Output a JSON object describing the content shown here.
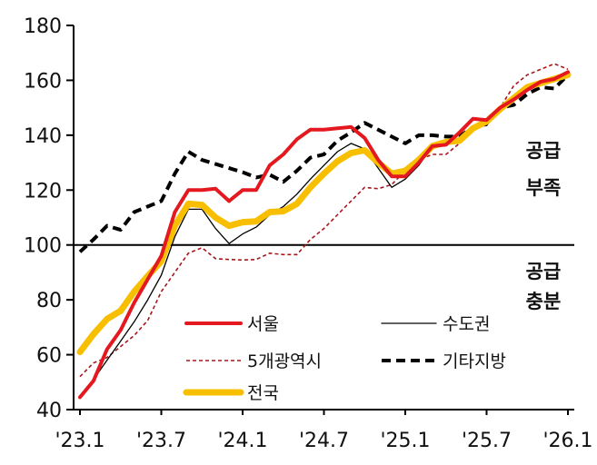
{
  "chart_data": {
    "type": "line",
    "title": "",
    "xlabel": "",
    "ylabel": "",
    "ylim": [
      40,
      180
    ],
    "yticks": [
      40,
      60,
      80,
      100,
      120,
      140,
      160,
      180
    ],
    "x_start": "2023-01",
    "x_end": "2026-01",
    "x_frequency": "monthly",
    "xtick_labels": [
      "'23.1",
      "'23.7",
      "'24.1",
      "'24.7",
      "'25.1",
      "'25.7",
      "'26.1"
    ],
    "reference_line": 100,
    "grid": false,
    "legend_placement": "bottom-center",
    "annotations": {
      "above": [
        "공급",
        "부족"
      ],
      "below": [
        "공급",
        "충분"
      ]
    },
    "series": [
      {
        "name": "서울",
        "color": "#e3191f",
        "style": "solid-thick",
        "values": [
          44.5,
          50.5,
          62,
          69,
          79,
          87.5,
          96,
          112,
          120,
          120,
          120.5,
          116,
          120,
          120,
          129,
          133,
          138.5,
          142,
          142,
          142.5,
          143,
          139,
          131,
          125,
          125,
          130,
          136,
          136.5,
          141,
          146,
          145.5,
          150,
          153,
          156.5,
          159.5,
          160.5,
          163
        ]
      },
      {
        "name": "수도권",
        "color": "#000000",
        "style": "solid-thin",
        "values": [
          44.5,
          51,
          58,
          65,
          72,
          80,
          89,
          103,
          113,
          113,
          106,
          100.5,
          104,
          106.5,
          111,
          114,
          118.5,
          124,
          129,
          134,
          137,
          135,
          128,
          121,
          124,
          129,
          136,
          137,
          138,
          143,
          143.5,
          150,
          153,
          157,
          158.5,
          160,
          162
        ]
      },
      {
        "name": "5개광역시",
        "color": "#a8161c",
        "style": "dashed-thin",
        "values": [
          52,
          57,
          59,
          63,
          67,
          72.5,
          83,
          90,
          97,
          99,
          95,
          94.7,
          94.5,
          94.7,
          97,
          96.5,
          96.5,
          102,
          106,
          111,
          116,
          121,
          120.5,
          122,
          127,
          131,
          133,
          133,
          137,
          142,
          144,
          150,
          158,
          162,
          164,
          166,
          164
        ]
      },
      {
        "name": "기타지방",
        "color": "#000000",
        "style": "dashed-thick",
        "values": [
          97.5,
          102,
          107,
          105.5,
          112,
          114,
          116,
          126,
          134,
          131,
          129.5,
          128,
          126.5,
          124.6,
          125.6,
          123,
          127,
          131.8,
          133,
          138,
          141,
          144.5,
          142,
          139.5,
          137,
          140,
          140,
          139.5,
          139.5,
          143,
          145,
          150,
          151,
          155,
          157.5,
          157,
          162
        ]
      },
      {
        "name": "전국",
        "color": "#f8bf00",
        "style": "solid-thickest",
        "values": [
          61,
          67.5,
          73,
          76,
          83,
          88.7,
          94,
          107,
          115,
          114.6,
          110,
          107,
          108.3,
          108.6,
          112,
          112.3,
          115,
          121,
          126,
          130.5,
          133.5,
          134.5,
          130,
          126,
          127,
          131,
          136,
          137.5,
          138,
          142.5,
          145,
          149.5,
          153.5,
          157.5,
          159,
          160.5,
          162
        ]
      }
    ]
  }
}
